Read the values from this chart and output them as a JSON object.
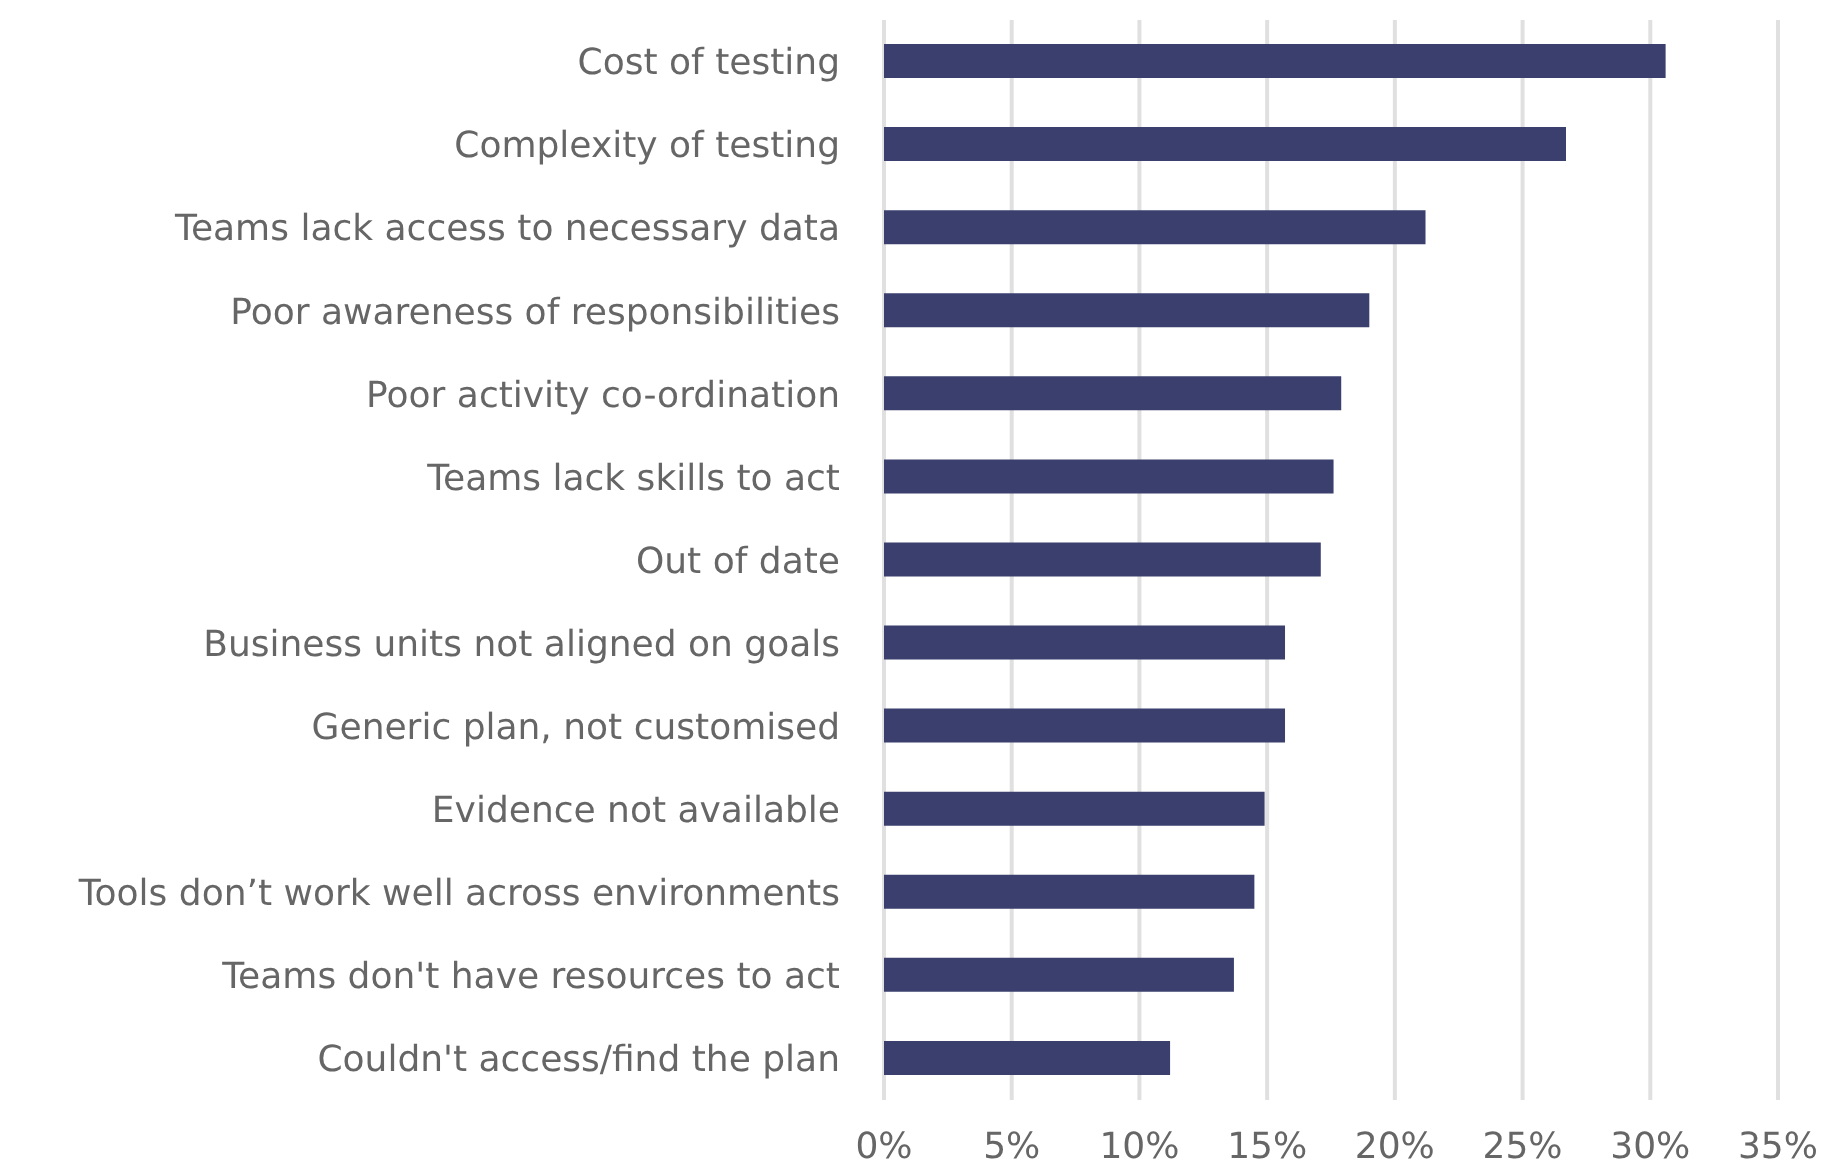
{
  "chart_data": {
    "type": "bar",
    "orientation": "horizontal",
    "categories": [
      "Cost of testing",
      "Complexity of testing",
      "Teams lack access to necessary data",
      "Poor awareness of responsibilities",
      "Poor activity co-ordination",
      "Teams lack skills to act",
      "Out of date",
      "Business units not aligned on goals",
      "Generic plan, not customised",
      "Evidence not available",
      "Tools don’t work well across environments",
      "Teams don't have resources to act",
      "Couldn't access/find the plan"
    ],
    "values": [
      30.6,
      26.7,
      21.2,
      19.0,
      17.9,
      17.6,
      17.1,
      15.7,
      15.7,
      14.9,
      14.5,
      13.7,
      11.2
    ],
    "color": "#3a3f6e",
    "xlim": [
      0,
      35
    ],
    "xticks": [
      {
        "value": 0,
        "label": "0%"
      },
      {
        "value": 5,
        "label": "5%"
      },
      {
        "value": 10,
        "label": "10%"
      },
      {
        "value": 15,
        "label": "15%"
      },
      {
        "value": 20,
        "label": "20%"
      },
      {
        "value": 25,
        "label": "25%"
      },
      {
        "value": 30,
        "label": "30%"
      },
      {
        "value": 35,
        "label": "35%"
      }
    ],
    "grid": "x"
  }
}
